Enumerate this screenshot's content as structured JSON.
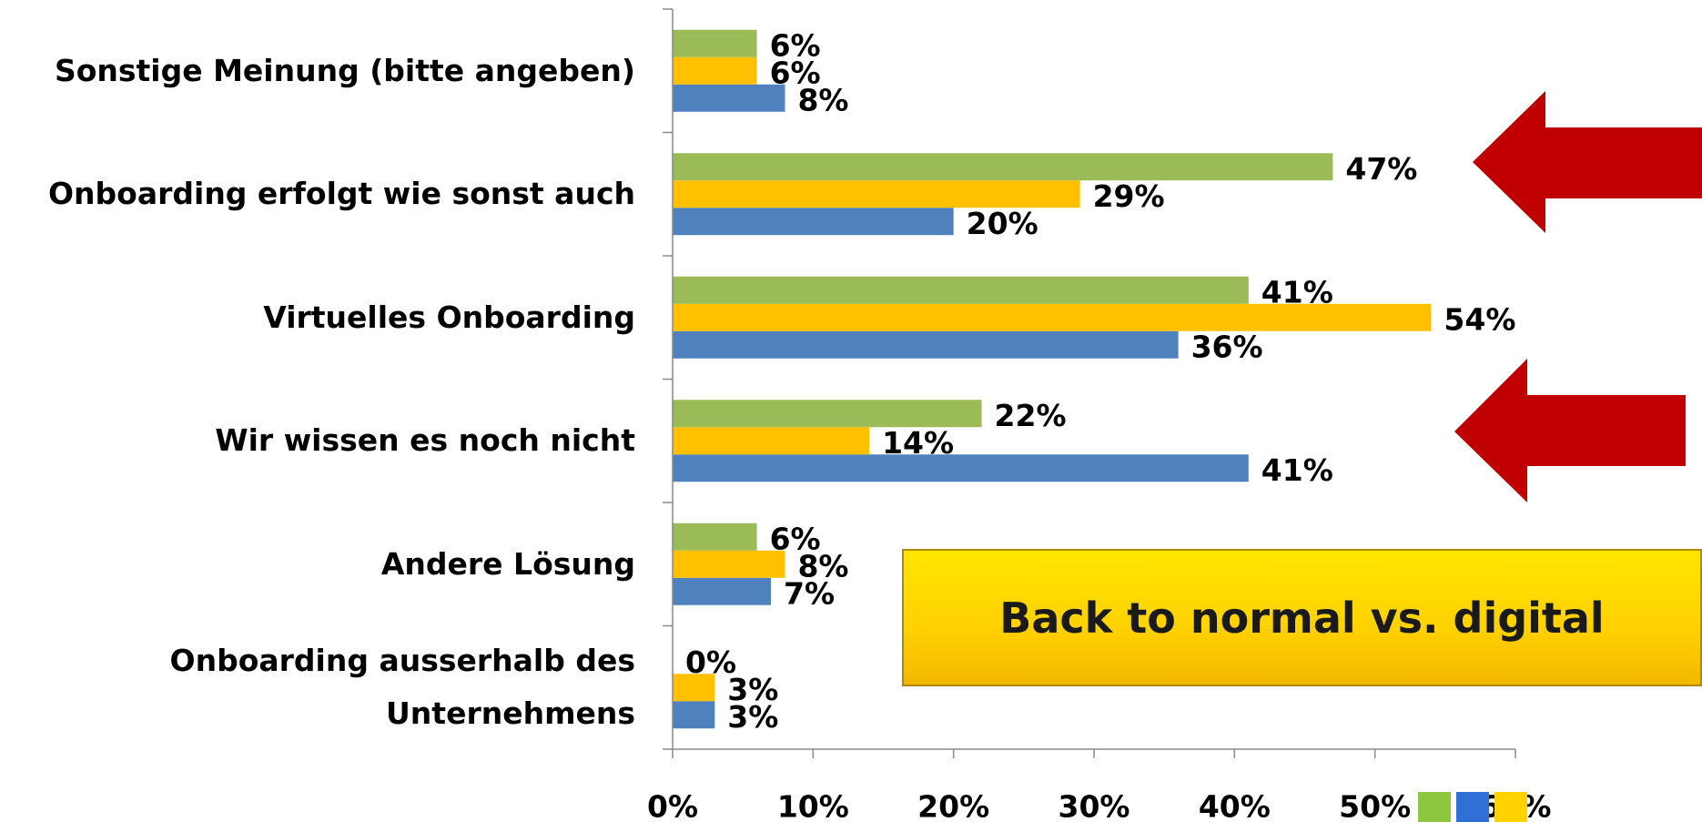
{
  "chart_data": {
    "type": "bar",
    "orientation": "horizontal",
    "categories": [
      "Sonstige Meinung (bitte angeben)",
      "Onboarding erfolgt wie sonst auch",
      "Virtuelles Onboarding",
      "Wir wissen es noch nicht",
      "Andere Lösung",
      "Onboarding ausserhalb des Unternehmens"
    ],
    "series": [
      {
        "color": "#9bbb59",
        "values": [
          6,
          47,
          41,
          22,
          6,
          0
        ],
        "value_labels": [
          "6%",
          "47%",
          "41%",
          "22%",
          "6%",
          "0%"
        ]
      },
      {
        "color": "#ffc000",
        "values": [
          6,
          29,
          54,
          14,
          8,
          3
        ],
        "value_labels": [
          "6%",
          "29%",
          "54%",
          "14%",
          "8%",
          "3%"
        ]
      },
      {
        "color": "#4f81bd",
        "values": [
          8,
          20,
          36,
          41,
          7,
          3
        ],
        "value_labels": [
          "8%",
          "20%",
          "36%",
          "41%",
          "7%",
          "3%"
        ]
      }
    ],
    "xlim": [
      0,
      60
    ],
    "xticks": [
      {
        "value": 0,
        "label": "0%"
      },
      {
        "value": 10,
        "label": "10%"
      },
      {
        "value": 20,
        "label": "20%"
      },
      {
        "value": 30,
        "label": "30%"
      },
      {
        "value": 40,
        "label": "40%"
      },
      {
        "value": 50,
        "label": "50%"
      },
      {
        "value": 60,
        "label": "60%"
      }
    ],
    "annotation": "Back to normal vs. digital"
  }
}
